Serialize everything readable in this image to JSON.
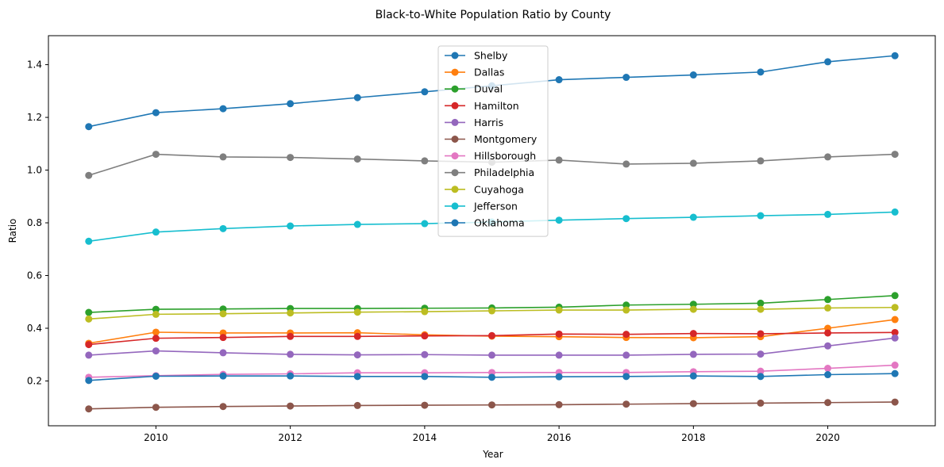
{
  "chart_data": {
    "type": "line",
    "title": "Black-to-White Population Ratio by County",
    "xlabel": "Year",
    "ylabel": "Ratio",
    "x": [
      2009,
      2010,
      2011,
      2012,
      2013,
      2014,
      2015,
      2016,
      2017,
      2018,
      2019,
      2020,
      2021
    ],
    "xlim": [
      2008.4,
      2021.6
    ],
    "ylim": [
      0.03,
      1.51
    ],
    "xticks": [
      2010,
      2012,
      2014,
      2016,
      2018,
      2020
    ],
    "yticks": [
      0.2,
      0.4,
      0.6,
      0.8,
      1.0,
      1.2,
      1.4
    ],
    "grid": false,
    "legend_position": "top-center",
    "series": [
      {
        "name": "Shelby",
        "color": "#1f77b4",
        "values": [
          1.165,
          1.218,
          1.233,
          1.252,
          1.275,
          1.297,
          1.32,
          1.343,
          1.352,
          1.361,
          1.372,
          1.411,
          1.434
        ]
      },
      {
        "name": "Dallas",
        "color": "#ff7f0e",
        "values": [
          0.343,
          0.385,
          0.382,
          0.382,
          0.383,
          0.375,
          0.37,
          0.368,
          0.365,
          0.364,
          0.368,
          0.4,
          0.433
        ]
      },
      {
        "name": "Duval",
        "color": "#2ca02c",
        "values": [
          0.46,
          0.472,
          0.473,
          0.475,
          0.475,
          0.476,
          0.477,
          0.48,
          0.488,
          0.491,
          0.495,
          0.509,
          0.524
        ]
      },
      {
        "name": "Hamilton",
        "color": "#d62728",
        "values": [
          0.338,
          0.362,
          0.365,
          0.369,
          0.369,
          0.371,
          0.372,
          0.378,
          0.377,
          0.38,
          0.379,
          0.382,
          0.384
        ]
      },
      {
        "name": "Harris",
        "color": "#9467bd",
        "values": [
          0.298,
          0.314,
          0.307,
          0.301,
          0.299,
          0.3,
          0.298,
          0.298,
          0.298,
          0.301,
          0.302,
          0.333,
          0.363
        ]
      },
      {
        "name": "Montgomery",
        "color": "#8c564b",
        "values": [
          0.094,
          0.1,
          0.103,
          0.105,
          0.107,
          0.108,
          0.109,
          0.11,
          0.112,
          0.114,
          0.116,
          0.118,
          0.12
        ]
      },
      {
        "name": "Hillsborough",
        "color": "#e377c2",
        "values": [
          0.214,
          0.22,
          0.225,
          0.227,
          0.231,
          0.231,
          0.232,
          0.232,
          0.232,
          0.235,
          0.237,
          0.248,
          0.26
        ]
      },
      {
        "name": "Philadelphia",
        "color": "#7f7f7f",
        "values": [
          0.98,
          1.06,
          1.05,
          1.048,
          1.042,
          1.035,
          1.03,
          1.038,
          1.023,
          1.026,
          1.035,
          1.05,
          1.06
        ]
      },
      {
        "name": "Cuyahoga",
        "color": "#bcbd22",
        "values": [
          0.435,
          0.453,
          0.455,
          0.458,
          0.461,
          0.463,
          0.466,
          0.469,
          0.469,
          0.472,
          0.472,
          0.477,
          0.479
        ]
      },
      {
        "name": "Jefferson",
        "color": "#17becf",
        "values": [
          0.73,
          0.765,
          0.778,
          0.788,
          0.794,
          0.797,
          0.803,
          0.81,
          0.816,
          0.821,
          0.827,
          0.832,
          0.841
        ]
      },
      {
        "name": "Oklahoma",
        "color": "#1f77b4",
        "values": [
          0.202,
          0.218,
          0.219,
          0.219,
          0.217,
          0.217,
          0.214,
          0.216,
          0.217,
          0.219,
          0.217,
          0.224,
          0.228
        ]
      }
    ]
  }
}
